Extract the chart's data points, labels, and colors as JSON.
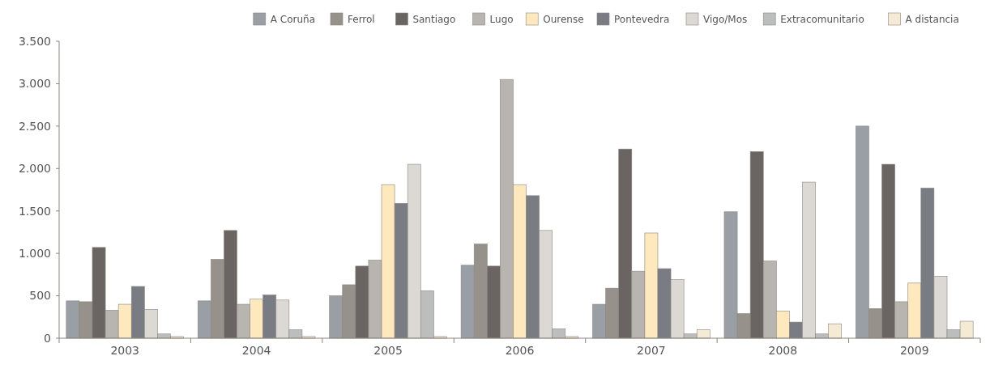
{
  "chart_data": {
    "type": "bar",
    "categories": [
      "2003",
      "2004",
      "2005",
      "2006",
      "2007",
      "2008",
      "2009"
    ],
    "series": [
      {
        "name": "A Coruña",
        "color": "#9a9ea5",
        "values": [
          440,
          440,
          500,
          860,
          400,
          1490,
          2500
        ]
      },
      {
        "name": "Ferrol",
        "color": "#96918a",
        "values": [
          430,
          930,
          630,
          1110,
          590,
          290,
          350
        ]
      },
      {
        "name": "Santiago",
        "color": "#6a6563",
        "values": [
          1070,
          1270,
          850,
          850,
          2230,
          2200,
          2050
        ]
      },
      {
        "name": "Lugo",
        "color": "#b8b4b0",
        "values": [
          330,
          400,
          920,
          3050,
          790,
          910,
          430
        ]
      },
      {
        "name": "Ourense",
        "color": "#fde9bd",
        "values": [
          400,
          460,
          1810,
          1810,
          1240,
          320,
          650
        ]
      },
      {
        "name": "Pontevedra",
        "color": "#7a7c83",
        "values": [
          610,
          510,
          1590,
          1680,
          820,
          190,
          1770
        ]
      },
      {
        "name": "Vigo/Mos",
        "color": "#dcd9d5",
        "values": [
          340,
          450,
          2050,
          1270,
          690,
          1840,
          730
        ]
      },
      {
        "name": "Extracomunitario",
        "color": "#bcbebe",
        "values": [
          50,
          100,
          560,
          110,
          50,
          50,
          100
        ]
      },
      {
        "name": "A distancia",
        "color": "#f5ead3",
        "values": [
          20,
          20,
          20,
          20,
          100,
          170,
          200
        ]
      }
    ],
    "ylim": [
      0,
      3500
    ],
    "yticks": [
      0,
      500,
      {
        "value": 1000,
        "label": "1.000"
      },
      {
        "value": 1500,
        "label": "1.500"
      },
      {
        "value": 2000,
        "label": "2.000"
      },
      {
        "value": 2500,
        "label": "2.500"
      },
      {
        "value": 3000,
        "label": "3.000"
      },
      {
        "value": 3500,
        "label": "3.500"
      }
    ],
    "grid": false,
    "legend": "top right"
  }
}
